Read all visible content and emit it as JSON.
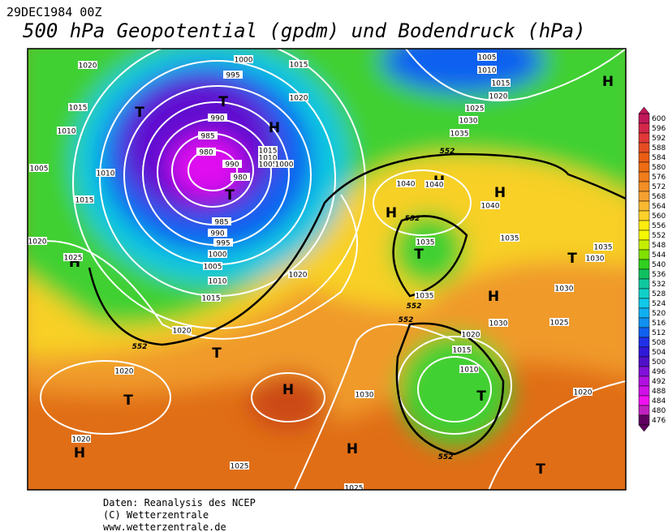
{
  "header": {
    "date": "29DEC1984 00Z",
    "title": "500 hPa Geopotential (gpdm) und Bodendruck (hPa)"
  },
  "map": {
    "pressure_centers": [
      "T",
      "T",
      "T",
      "H",
      "H",
      "T",
      "T",
      "H",
      "H",
      "H",
      "T",
      "T",
      "H",
      "H",
      "H",
      "T",
      "H",
      "T",
      "H"
    ],
    "isobar_labels": [
      1020,
      1015,
      1010,
      1005,
      1010,
      1015,
      1020,
      1025,
      1000,
      995,
      990,
      985,
      980,
      990,
      980,
      985,
      990,
      995,
      1000,
      1005,
      1010,
      1015,
      1020,
      1020,
      1020,
      1020,
      1025,
      1025,
      1030,
      1015,
      1020,
      1015,
      1010,
      1005,
      1000,
      1005,
      1010,
      1015,
      1020,
      1025,
      1030,
      1035,
      1040,
      1040,
      1040,
      1035,
      1035,
      1035,
      1035,
      1030,
      1030,
      1030,
      1025,
      1020,
      1015,
      1010,
      1020
    ],
    "contour_labels": [
      552,
      552,
      552,
      552,
      552,
      552
    ]
  },
  "colorbar": {
    "levels": [
      600,
      596,
      592,
      588,
      584,
      580,
      576,
      572,
      568,
      564,
      560,
      556,
      552,
      548,
      544,
      540,
      536,
      532,
      528,
      524,
      520,
      516,
      512,
      508,
      504,
      500,
      496,
      492,
      488,
      484,
      480,
      476
    ],
    "colors": [
      "#c0185a",
      "#d4264a",
      "#e03838",
      "#e64c22",
      "#ea5c14",
      "#ee6c12",
      "#f07c1c",
      "#f28e26",
      "#f4a030",
      "#f8b830",
      "#fcd028",
      "#ffec10",
      "#f4f800",
      "#c4ee00",
      "#80e000",
      "#30d020",
      "#10c060",
      "#10c8a0",
      "#10d0c8",
      "#10c8e8",
      "#10b0f0",
      "#1090f0",
      "#1060f0",
      "#2030e8",
      "#3018d8",
      "#5010c8",
      "#8010d8",
      "#b010e0",
      "#d010e8",
      "#f010f0",
      "#c020c0",
      "#600060"
    ]
  },
  "footer": [
    "Daten: Reanalysis des NCEP",
    "(C) Wetterzentrale",
    "www.wetterzentrale.de"
  ]
}
